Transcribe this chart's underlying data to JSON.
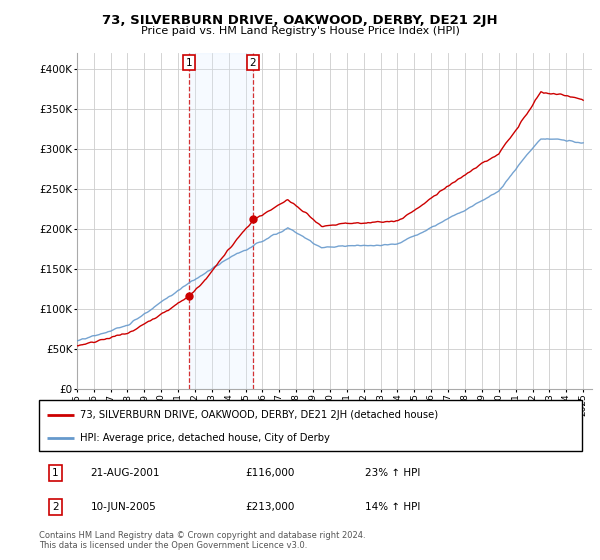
{
  "title": "73, SILVERBURN DRIVE, OAKWOOD, DERBY, DE21 2JH",
  "subtitle": "Price paid vs. HM Land Registry's House Price Index (HPI)",
  "legend_line1": "73, SILVERBURN DRIVE, OAKWOOD, DERBY, DE21 2JH (detached house)",
  "legend_line2": "HPI: Average price, detached house, City of Derby",
  "footnote": "Contains HM Land Registry data © Crown copyright and database right 2024.\nThis data is licensed under the Open Government Licence v3.0.",
  "transaction1_date": "21-AUG-2001",
  "transaction1_price": "£116,000",
  "transaction1_hpi": "23% ↑ HPI",
  "transaction2_date": "10-JUN-2005",
  "transaction2_price": "£213,000",
  "transaction2_hpi": "14% ↑ HPI",
  "sale1_x": 2001.644,
  "sale1_y": 116000,
  "sale2_x": 2005.441,
  "sale2_y": 213000,
  "line_color_red": "#cc0000",
  "line_color_blue": "#6699cc",
  "shade_color": "#ddeeff",
  "grid_color": "#cccccc",
  "ylim": [
    0,
    420000
  ],
  "xlim": [
    1995.0,
    2025.5
  ],
  "yticks": [
    0,
    50000,
    100000,
    150000,
    200000,
    250000,
    300000,
    350000,
    400000
  ],
  "xticks": [
    1995,
    1996,
    1997,
    1998,
    1999,
    2000,
    2001,
    2002,
    2003,
    2004,
    2005,
    2006,
    2007,
    2008,
    2009,
    2010,
    2011,
    2012,
    2013,
    2014,
    2015,
    2016,
    2017,
    2018,
    2019,
    2020,
    2021,
    2022,
    2023,
    2024,
    2025
  ]
}
